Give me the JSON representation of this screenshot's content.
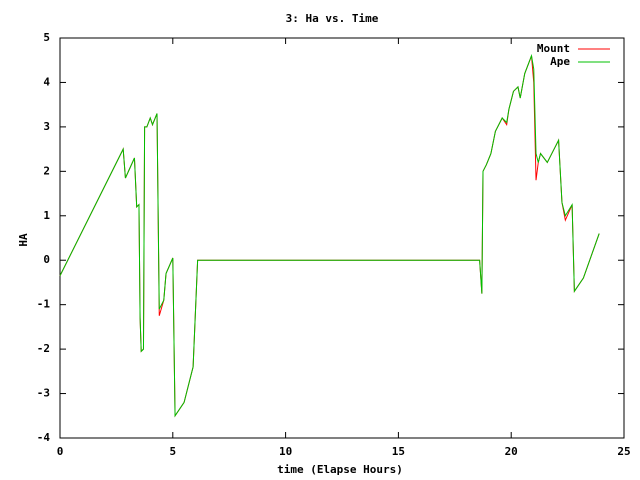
{
  "chart_data": {
    "type": "line",
    "title": "3: Ha vs. Time",
    "x_label": "time (Elapse Hours)",
    "y_label": "HA",
    "x": [
      0,
      2.8,
      2.9,
      3.3,
      3.4,
      3.5,
      3.55,
      3.6,
      3.7,
      3.75,
      3.85,
      4.0,
      4.1,
      4.3,
      4.4,
      4.6,
      4.7,
      5.0,
      5.1,
      5.5,
      5.9,
      6.1,
      18.6,
      18.7,
      18.75,
      18.9,
      19.1,
      19.3,
      19.6,
      19.8,
      19.9,
      20.1,
      20.3,
      20.4,
      20.6,
      20.9,
      21.0,
      21.1,
      21.2,
      21.3,
      21.6,
      21.8,
      22.1,
      22.25,
      22.4,
      22.7,
      22.8,
      23.2,
      23.9
    ],
    "series": [
      {
        "name": "Mount",
        "color": "#ff0000",
        "values": [
          -0.35,
          2.5,
          1.85,
          2.3,
          1.2,
          1.25,
          -1.3,
          -2.05,
          -2.0,
          3.0,
          3.0,
          3.2,
          3.05,
          3.3,
          -1.25,
          -0.9,
          -0.3,
          0.05,
          -3.5,
          -3.2,
          -2.4,
          0,
          0,
          -0.75,
          2.0,
          2.15,
          2.4,
          2.9,
          3.2,
          3.05,
          3.4,
          3.8,
          3.9,
          3.65,
          4.2,
          4.6,
          4.0,
          1.8,
          2.2,
          2.4,
          2.2,
          2.4,
          2.7,
          1.3,
          0.9,
          1.25,
          -0.7,
          -0.4,
          0.6
        ]
      },
      {
        "name": "Ape",
        "color": "#00c000",
        "values": [
          -0.35,
          2.5,
          1.85,
          2.3,
          1.2,
          1.25,
          -1.3,
          -2.05,
          -2.0,
          3.0,
          3.0,
          3.2,
          3.05,
          3.3,
          -1.1,
          -0.9,
          -0.3,
          0.05,
          -3.5,
          -3.2,
          -2.4,
          0,
          0,
          -0.75,
          2.0,
          2.15,
          2.4,
          2.9,
          3.2,
          3.1,
          3.4,
          3.8,
          3.9,
          3.65,
          4.2,
          4.6,
          4.3,
          2.4,
          2.2,
          2.4,
          2.2,
          2.4,
          2.7,
          1.3,
          1.0,
          1.25,
          -0.7,
          -0.4,
          0.6
        ]
      }
    ],
    "xlim": [
      0,
      25
    ],
    "xticks": [
      0,
      5,
      10,
      15,
      20,
      25
    ],
    "ylim": [
      -4,
      5
    ],
    "yticks": [
      -4,
      -3,
      -2,
      -1,
      0,
      1,
      2,
      3,
      4,
      5
    ],
    "legend": "top-right"
  }
}
